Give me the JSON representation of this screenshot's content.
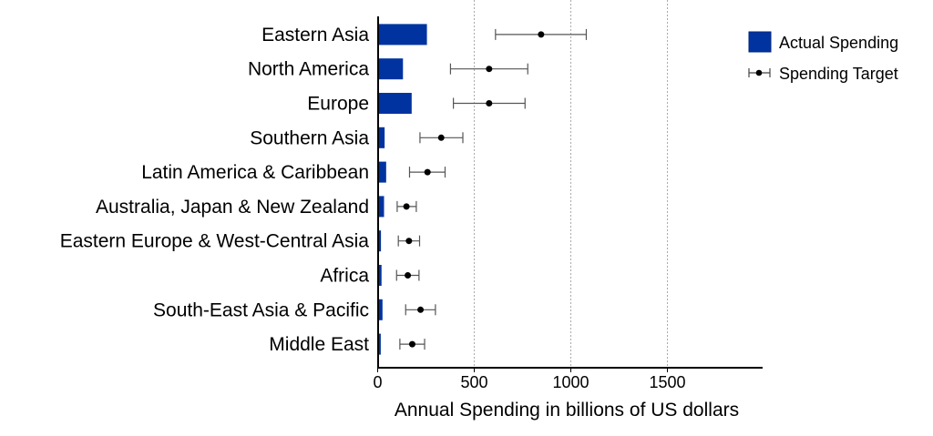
{
  "chart_data": {
    "type": "bar",
    "orientation": "horizontal",
    "categories": [
      "Eastern Asia",
      "North America",
      "Europe",
      "Southern Asia",
      "Latin America & Caribbean",
      "Australia, Japan & New Zealand",
      "Eastern Europe & West-Central Asia",
      "Africa",
      "South-East Asia & Pacific",
      "Middle East"
    ],
    "series": [
      {
        "name": "Actual Spending",
        "type": "bar",
        "color": "#0033a0",
        "values": [
          255,
          131,
          176,
          36,
          44,
          33,
          17,
          20,
          25,
          16
        ]
      },
      {
        "name": "Spending Target",
        "type": "errorbar-point",
        "color": "#000000",
        "values": [
          846,
          577,
          577,
          329,
          258,
          149,
          162,
          156,
          222,
          179
        ],
        "lower": [
          610,
          377,
          392,
          219,
          165,
          101,
          107,
          98,
          145,
          115
        ],
        "upper": [
          1080,
          777,
          763,
          441,
          349,
          200,
          217,
          214,
          299,
          243
        ]
      }
    ],
    "xlabel": "Annual Spending in billions of US dollars",
    "ylabel": "",
    "xlim": [
      0,
      2000
    ],
    "xticks": [
      0,
      500,
      1000,
      1500
    ],
    "grid": "vertical dashed at x ticks",
    "legend": "top-right"
  }
}
